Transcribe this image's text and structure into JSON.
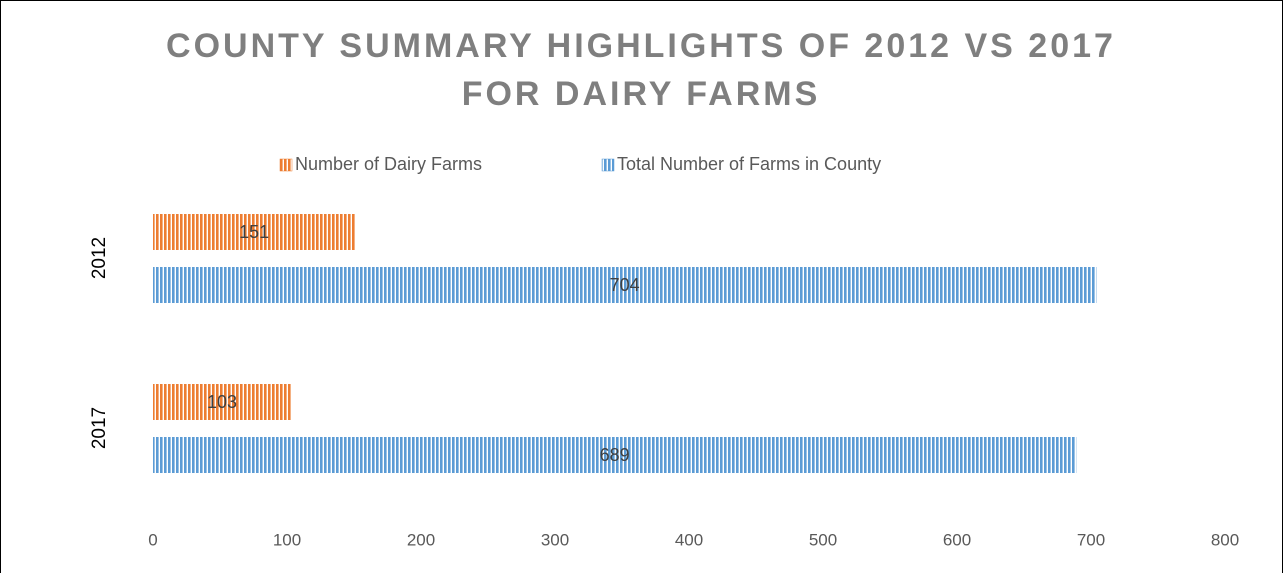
{
  "chart_data": {
    "type": "hbar",
    "title": [
      "COUNTY SUMMARY HIGHLIGHTS OF 2012 VS 2017",
      "FOR DAIRY FARMS"
    ],
    "categories": [
      "2012",
      "2017"
    ],
    "series": [
      {
        "name": "Number of Dairy Farms",
        "color": "#ed7d31",
        "values": [
          151,
          103
        ]
      },
      {
        "name": "Total Number of Farms in County",
        "color": "#5b9bd5",
        "values": [
          704,
          689
        ]
      }
    ],
    "xlim": [
      0,
      800
    ],
    "xticks": [
      0,
      100,
      200,
      300,
      400,
      500,
      600,
      700,
      800
    ],
    "legend": "top",
    "grid": false
  }
}
